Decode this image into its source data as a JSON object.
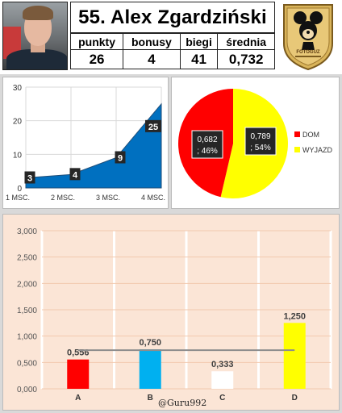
{
  "header": {
    "title": "55. Alex Zgardziński",
    "stats": [
      {
        "label": "punkty",
        "value": "26"
      },
      {
        "label": "bonusy",
        "value": "4"
      },
      {
        "label": "biegi",
        "value": "41"
      },
      {
        "label": "średnia",
        "value": "0,732"
      }
    ],
    "logo_text": "FOTOGUZ"
  },
  "chart_data": [
    {
      "type": "area",
      "categories": [
        "1 MSC.",
        "2 MSC.",
        "3 MSC.",
        "4 MSC."
      ],
      "values": [
        3,
        4,
        9,
        25
      ],
      "data_labels": [
        "3",
        "4",
        "9",
        "25"
      ],
      "y_ticks": [
        "0",
        "10",
        "20",
        "30"
      ],
      "ylim": [
        0,
        30
      ],
      "grid": true,
      "color": "#0070c0"
    },
    {
      "type": "pie",
      "slices": [
        {
          "name": "DOM",
          "value": 0.682,
          "percent": 46,
          "label": "0,682",
          "pct_label": "; 46%",
          "color": "#ff0000"
        },
        {
          "name": "WYJAZD",
          "value": 0.789,
          "percent": 54,
          "label": "0,789",
          "pct_label": "; 54%",
          "color": "#ffff00"
        }
      ],
      "legend_position": "right"
    },
    {
      "type": "bar",
      "categories": [
        "A",
        "B",
        "C",
        "D"
      ],
      "values": [
        0.556,
        0.75,
        0.333,
        1.25
      ],
      "data_labels": [
        "0,556",
        "0,750",
        "0,333",
        "1,250"
      ],
      "colors": [
        "#ff0000",
        "#00b0f0",
        "#ffffff",
        "#ffff00"
      ],
      "reference_line": 0.732,
      "y_ticks": [
        "0,000",
        "0,500",
        "1,000",
        "1,500",
        "2,000",
        "2,500",
        "3,000"
      ],
      "ylim": [
        0,
        3
      ],
      "grid": true
    }
  ],
  "footer": {
    "watermark": "@Guru992"
  }
}
